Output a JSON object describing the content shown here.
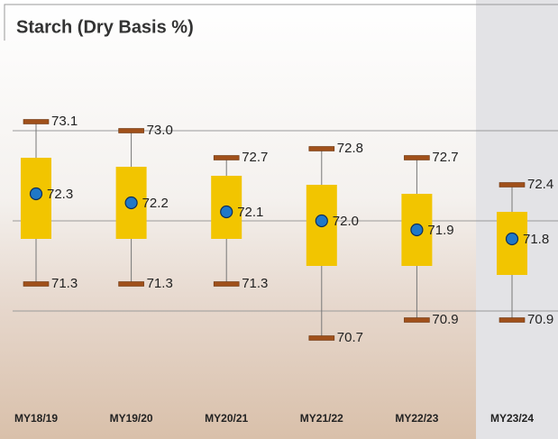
{
  "chart_data": {
    "type": "box",
    "title": "Starch (Dry Basis %)",
    "categories": [
      "MY18/19",
      "MY19/20",
      "MY20/21",
      "MY21/22",
      "MY22/23",
      "MY23/24"
    ],
    "max": {
      "values": [
        73.1,
        73.0,
        72.7,
        72.8,
        72.7,
        72.4
      ],
      "value_labels": [
        "73.1",
        "73.0",
        "72.7",
        "72.8",
        "72.7",
        "72.4"
      ]
    },
    "q3": {
      "values": [
        72.7,
        72.6,
        72.5,
        72.4,
        72.3,
        72.1
      ]
    },
    "mean": {
      "values": [
        72.3,
        72.2,
        72.1,
        72.0,
        71.9,
        71.8
      ],
      "value_labels": [
        "72.3",
        "72.2",
        "72.1",
        "72.0",
        "71.9",
        "71.8"
      ]
    },
    "q1": {
      "values": [
        71.8,
        71.8,
        71.8,
        71.5,
        71.5,
        71.4
      ]
    },
    "min": {
      "values": [
        71.3,
        71.3,
        71.3,
        70.7,
        70.9,
        70.9
      ],
      "value_labels": [
        "71.3",
        "71.3",
        "71.3",
        "70.7",
        "70.9",
        "70.9"
      ]
    },
    "ylim": [
      70.0,
      74.0
    ],
    "yticks": [
      71,
      72,
      73
    ],
    "grid": true,
    "box_color": "#f2c500",
    "mean_color": "#1f78c8",
    "cap_color": "#a0501a"
  }
}
